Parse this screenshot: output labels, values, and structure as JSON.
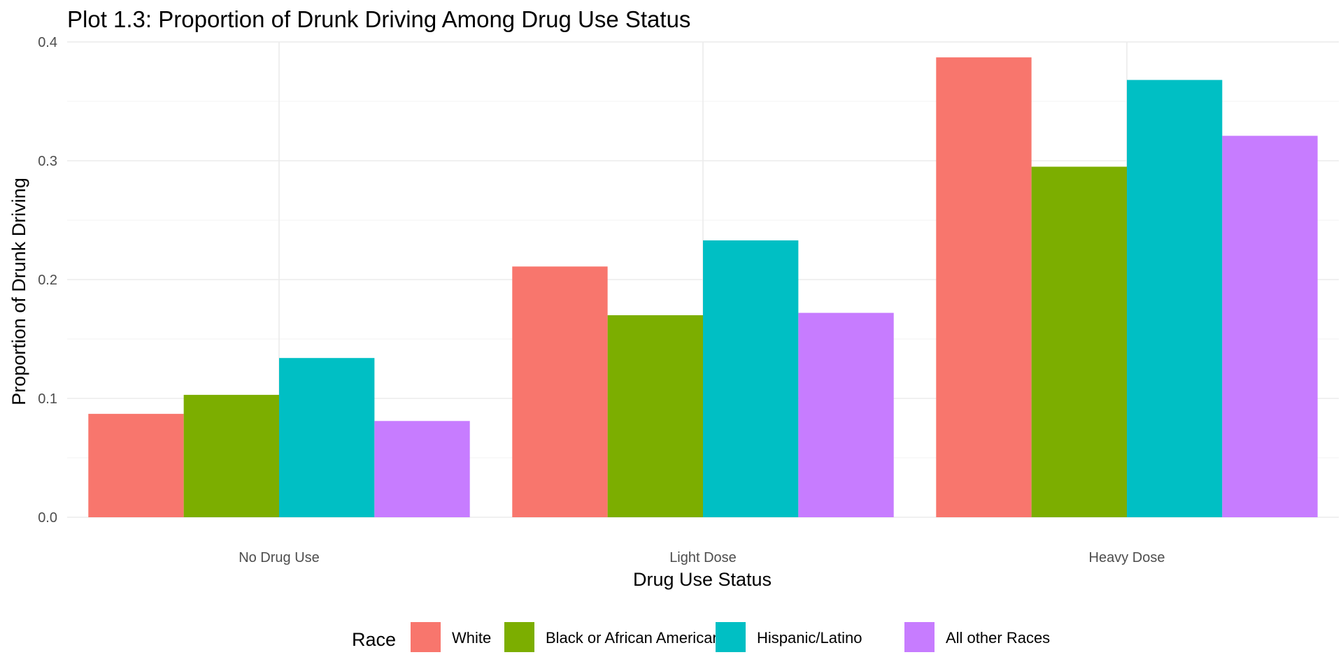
{
  "chart_data": {
    "type": "bar",
    "title": "Plot 1.3: Proportion of Drunk Driving Among Drug Use Status",
    "xlabel": "Drug Use Status",
    "ylabel": "Proportion of Drunk Driving",
    "categories": [
      "No Drug Use",
      "Light Dose",
      "Heavy Dose"
    ],
    "ylim": [
      0,
      0.4
    ],
    "yticks": [
      "0.0",
      "0.1",
      "0.2",
      "0.3",
      "0.4"
    ],
    "grid": true,
    "legend_title": "Race",
    "legend_position": "bottom",
    "series": [
      {
        "name": "White",
        "color": "#F8766D",
        "values": [
          0.087,
          0.211,
          0.387
        ]
      },
      {
        "name": "Black or African American",
        "color": "#7CAE00",
        "values": [
          0.103,
          0.17,
          0.295
        ]
      },
      {
        "name": "Hispanic/Latino",
        "color": "#00BFC4",
        "values": [
          0.134,
          0.233,
          0.368
        ]
      },
      {
        "name": "All other Races",
        "color": "#C77CFF",
        "values": [
          0.081,
          0.172,
          0.321
        ]
      }
    ]
  }
}
